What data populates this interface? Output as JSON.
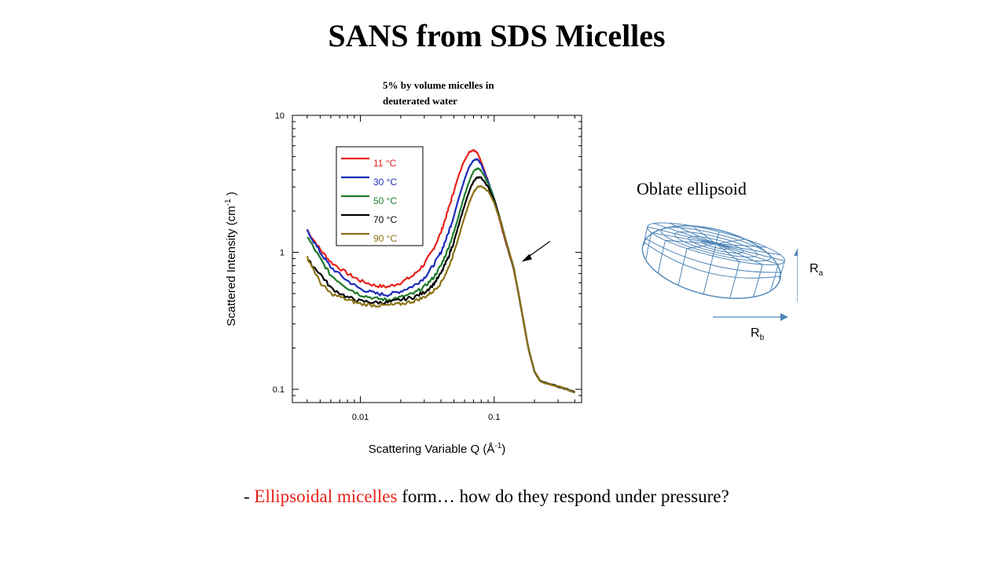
{
  "slide": {
    "title": "SANS from SDS Micelles",
    "bottom_prefix": "- ",
    "bottom_highlight": "Ellipsoidal micelles",
    "bottom_rest": " form… how do they respond under pressure?"
  },
  "ellipsoid": {
    "label": "Oblate ellipsoid",
    "ra_main": "R",
    "ra_sub": "a",
    "rb_main": "R",
    "rb_sub": "b",
    "color": "#4f86b8"
  },
  "chart_data": {
    "type": "line",
    "title": "5% by volume micelles in deuterated water",
    "xlabel": "Scattering Variable Q (Å",
    "xlabel_sup": "-1",
    "xlabel_end": ")",
    "ylabel": "Scattered Intensity (cm",
    "ylabel_sup": "-1",
    "ylabel_end": " )",
    "xscale": "log",
    "yscale": "log",
    "xlim": [
      0.0031,
      0.45
    ],
    "ylim": [
      0.08,
      10
    ],
    "xticks": [
      0.01,
      0.1
    ],
    "xtick_labels": [
      "0.01",
      "0.1"
    ],
    "yticks": [
      0.1,
      1,
      10
    ],
    "ytick_labels": [
      "0.1",
      "1",
      "10"
    ],
    "grid": false,
    "legend_position": "upper-left",
    "series": [
      {
        "name": "11 °C",
        "color": "#e8221b",
        "x": [
          0.004,
          0.005,
          0.006,
          0.008,
          0.01,
          0.013,
          0.016,
          0.02,
          0.025,
          0.03,
          0.035,
          0.04,
          0.045,
          0.05,
          0.055,
          0.06,
          0.065,
          0.07,
          0.075,
          0.08,
          0.09,
          0.1,
          0.11,
          0.12,
          0.14,
          0.16,
          0.18,
          0.2,
          0.22,
          0.25,
          0.3,
          0.35,
          0.4
        ],
        "y": [
          1.45,
          1.05,
          0.85,
          0.7,
          0.62,
          0.57,
          0.56,
          0.6,
          0.68,
          0.82,
          1.05,
          1.4,
          2.0,
          2.8,
          3.8,
          4.7,
          5.4,
          5.6,
          5.3,
          4.6,
          3.3,
          2.4,
          1.7,
          1.25,
          0.75,
          0.38,
          0.2,
          0.135,
          0.115,
          0.11,
          0.105,
          0.1,
          0.095
        ]
      },
      {
        "name": "30 °C",
        "color": "#1c2bb8",
        "x": [
          0.004,
          0.005,
          0.006,
          0.008,
          0.01,
          0.013,
          0.016,
          0.02,
          0.025,
          0.03,
          0.035,
          0.04,
          0.045,
          0.05,
          0.055,
          0.06,
          0.065,
          0.07,
          0.075,
          0.08,
          0.09,
          0.1,
          0.11,
          0.12,
          0.14,
          0.16,
          0.18,
          0.2,
          0.22,
          0.25,
          0.3,
          0.35,
          0.4
        ],
        "y": [
          1.45,
          1.0,
          0.78,
          0.62,
          0.54,
          0.5,
          0.49,
          0.52,
          0.57,
          0.65,
          0.8,
          1.0,
          1.35,
          1.85,
          2.6,
          3.4,
          4.2,
          4.7,
          4.8,
          4.4,
          3.3,
          2.45,
          1.75,
          1.28,
          0.76,
          0.38,
          0.2,
          0.135,
          0.115,
          0.11,
          0.105,
          0.1,
          0.095
        ]
      },
      {
        "name": "50 °C",
        "color": "#1f7a2a",
        "x": [
          0.004,
          0.005,
          0.006,
          0.008,
          0.01,
          0.013,
          0.016,
          0.02,
          0.025,
          0.03,
          0.035,
          0.04,
          0.045,
          0.05,
          0.055,
          0.06,
          0.065,
          0.07,
          0.075,
          0.08,
          0.09,
          0.1,
          0.11,
          0.12,
          0.14,
          0.16,
          0.18,
          0.2,
          0.22,
          0.25,
          0.3,
          0.35,
          0.4
        ],
        "y": [
          1.3,
          0.9,
          0.68,
          0.55,
          0.49,
          0.46,
          0.45,
          0.47,
          0.5,
          0.56,
          0.65,
          0.8,
          1.05,
          1.4,
          1.95,
          2.6,
          3.3,
          3.9,
          4.1,
          3.95,
          3.2,
          2.45,
          1.78,
          1.3,
          0.77,
          0.38,
          0.2,
          0.135,
          0.115,
          0.11,
          0.105,
          0.1,
          0.095
        ]
      },
      {
        "name": "70 °C",
        "color": "#000000",
        "x": [
          0.004,
          0.005,
          0.006,
          0.008,
          0.01,
          0.013,
          0.016,
          0.02,
          0.025,
          0.03,
          0.035,
          0.04,
          0.045,
          0.05,
          0.055,
          0.06,
          0.065,
          0.07,
          0.075,
          0.08,
          0.09,
          0.1,
          0.11,
          0.12,
          0.14,
          0.16,
          0.18,
          0.2,
          0.22,
          0.25,
          0.3,
          0.35,
          0.4
        ],
        "y": [
          0.88,
          0.7,
          0.55,
          0.47,
          0.44,
          0.43,
          0.43,
          0.45,
          0.47,
          0.51,
          0.58,
          0.7,
          0.9,
          1.2,
          1.65,
          2.2,
          2.8,
          3.3,
          3.55,
          3.5,
          3.0,
          2.4,
          1.78,
          1.3,
          0.77,
          0.38,
          0.2,
          0.135,
          0.115,
          0.11,
          0.105,
          0.1,
          0.095
        ]
      },
      {
        "name": "90 °C",
        "color": "#8a7214",
        "x": [
          0.004,
          0.005,
          0.006,
          0.008,
          0.01,
          0.013,
          0.016,
          0.02,
          0.025,
          0.03,
          0.035,
          0.04,
          0.045,
          0.05,
          0.055,
          0.06,
          0.065,
          0.07,
          0.075,
          0.08,
          0.09,
          0.1,
          0.11,
          0.12,
          0.14,
          0.16,
          0.18,
          0.2,
          0.22,
          0.25,
          0.3,
          0.35,
          0.4
        ],
        "y": [
          0.93,
          0.6,
          0.5,
          0.45,
          0.42,
          0.41,
          0.41,
          0.42,
          0.44,
          0.47,
          0.52,
          0.6,
          0.75,
          1.0,
          1.35,
          1.8,
          2.3,
          2.75,
          3.0,
          3.05,
          2.8,
          2.3,
          1.75,
          1.3,
          0.77,
          0.38,
          0.2,
          0.135,
          0.115,
          0.11,
          0.105,
          0.1,
          0.095
        ]
      }
    ],
    "annotation": {
      "type": "arrow",
      "x": 0.15,
      "y": 0.9
    }
  }
}
